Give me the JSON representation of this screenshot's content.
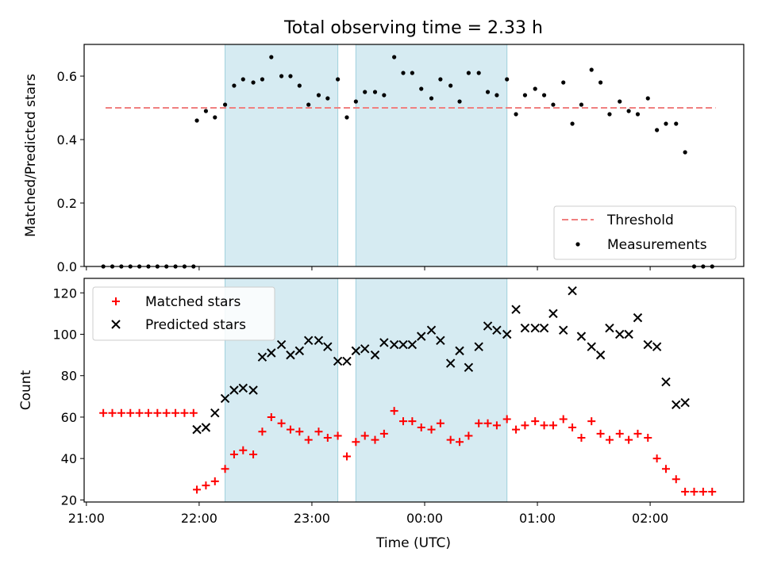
{
  "figure": {
    "title": "Total observing time = 2.33 h",
    "xlabel": "Time (UTC)"
  },
  "x_ticks": [
    {
      "label": "21:00",
      "value": 21.0
    },
    {
      "label": "22:00",
      "value": 22.0
    },
    {
      "label": "23:00",
      "value": 23.0
    },
    {
      "label": "00:00",
      "value": 24.0
    },
    {
      "label": "01:00",
      "value": 25.0
    },
    {
      "label": "02:00",
      "value": 26.0
    }
  ],
  "colors": {
    "threshold": "#f08080",
    "measurements": "#000000",
    "matched": "#ff0000",
    "predicted": "#000000",
    "shade_fill": "#add8e6",
    "shade_edge": "#9fd0dc"
  },
  "chart_data": [
    {
      "type": "scatter",
      "ylabel": "Matched/Predicted stars",
      "xlim": [
        20.98,
        26.83
      ],
      "ylim": [
        0,
        0.7
      ],
      "yticks": [
        {
          "label": "0.0",
          "value": 0.0
        },
        {
          "label": "0.2",
          "value": 0.2
        },
        {
          "label": "0.4",
          "value": 0.4
        },
        {
          "label": "0.6",
          "value": 0.6
        }
      ],
      "shaded_intervals": [
        [
          22.23,
          23.23
        ],
        [
          23.39,
          24.73
        ]
      ],
      "threshold": {
        "name": "Threshold",
        "y": 0.5,
        "x_range": [
          21.17,
          26.58
        ]
      },
      "legend": {
        "position": "lower-right",
        "entries": [
          "Threshold",
          "Measurements"
        ]
      },
      "series": [
        {
          "name": "Measurements",
          "x": [
            21.15,
            21.23,
            21.31,
            21.39,
            21.47,
            21.55,
            21.63,
            21.71,
            21.79,
            21.87,
            21.95,
            21.98,
            22.06,
            22.14,
            22.23,
            22.31,
            22.39,
            22.48,
            22.56,
            22.64,
            22.73,
            22.81,
            22.89,
            22.97,
            23.06,
            23.14,
            23.23,
            23.31,
            23.39,
            23.47,
            23.56,
            23.64,
            23.73,
            23.81,
            23.89,
            23.97,
            24.06,
            24.14,
            24.23,
            24.31,
            24.39,
            24.48,
            24.56,
            24.64,
            24.73,
            24.81,
            24.89,
            24.98,
            25.06,
            25.14,
            25.23,
            25.31,
            25.39,
            25.48,
            25.56,
            25.64,
            25.73,
            25.81,
            25.89,
            25.98,
            26.06,
            26.14,
            26.23,
            26.31,
            26.39,
            26.47,
            26.55
          ],
          "y": [
            0,
            0,
            0,
            0,
            0,
            0,
            0,
            0,
            0,
            0,
            0,
            0.46,
            0.49,
            0.47,
            0.51,
            0.57,
            0.59,
            0.58,
            0.59,
            0.66,
            0.6,
            0.6,
            0.57,
            0.51,
            0.54,
            0.53,
            0.59,
            0.47,
            0.52,
            0.55,
            0.55,
            0.54,
            0.66,
            0.61,
            0.61,
            0.56,
            0.53,
            0.59,
            0.57,
            0.52,
            0.61,
            0.61,
            0.55,
            0.54,
            0.59,
            0.48,
            0.54,
            0.56,
            0.54,
            0.51,
            0.58,
            0.45,
            0.51,
            0.62,
            0.58,
            0.48,
            0.52,
            0.49,
            0.48,
            0.53,
            0.43,
            0.45,
            0.45,
            0.36,
            0,
            0,
            0
          ]
        }
      ]
    },
    {
      "type": "scatter",
      "ylabel": "Count",
      "xlim": [
        20.98,
        26.83
      ],
      "ylim": [
        19,
        127
      ],
      "yticks": [
        {
          "label": "20",
          "value": 20
        },
        {
          "label": "40",
          "value": 40
        },
        {
          "label": "60",
          "value": 60
        },
        {
          "label": "80",
          "value": 80
        },
        {
          "label": "100",
          "value": 100
        },
        {
          "label": "120",
          "value": 120
        }
      ],
      "shaded_intervals": [
        [
          22.23,
          23.23
        ],
        [
          23.39,
          24.73
        ]
      ],
      "legend": {
        "position": "upper-left",
        "entries": [
          "Matched stars",
          "Predicted stars"
        ]
      },
      "series": [
        {
          "name": "Matched stars",
          "x": [
            21.15,
            21.23,
            21.31,
            21.39,
            21.47,
            21.55,
            21.63,
            21.71,
            21.79,
            21.87,
            21.95,
            21.98,
            22.06,
            22.14,
            22.23,
            22.31,
            22.39,
            22.48,
            22.56,
            22.64,
            22.73,
            22.81,
            22.89,
            22.97,
            23.06,
            23.14,
            23.23,
            23.31,
            23.39,
            23.47,
            23.56,
            23.64,
            23.73,
            23.81,
            23.89,
            23.97,
            24.06,
            24.14,
            24.23,
            24.31,
            24.39,
            24.48,
            24.56,
            24.64,
            24.73,
            24.81,
            24.89,
            24.98,
            25.06,
            25.14,
            25.23,
            25.31,
            25.39,
            25.48,
            25.56,
            25.64,
            25.73,
            25.81,
            25.89,
            25.98,
            26.06,
            26.14,
            26.23,
            26.31,
            26.39,
            26.47,
            26.55
          ],
          "y": [
            62,
            62,
            62,
            62,
            62,
            62,
            62,
            62,
            62,
            62,
            62,
            25,
            27,
            29,
            35,
            42,
            44,
            42,
            53,
            60,
            57,
            54,
            53,
            49,
            53,
            50,
            51,
            41,
            48,
            51,
            49,
            52,
            63,
            58,
            58,
            55,
            54,
            57,
            49,
            48,
            51,
            57,
            57,
            56,
            59,
            54,
            56,
            58,
            56,
            56,
            59,
            55,
            50,
            58,
            52,
            49,
            52,
            49,
            52,
            50,
            40,
            35,
            30,
            24,
            24,
            24,
            24
          ]
        },
        {
          "name": "Predicted stars",
          "x": [
            21.98,
            22.06,
            22.14,
            22.23,
            22.31,
            22.39,
            22.48,
            22.56,
            22.64,
            22.73,
            22.81,
            22.89,
            22.97,
            23.06,
            23.14,
            23.23,
            23.31,
            23.39,
            23.47,
            23.56,
            23.64,
            23.73,
            23.81,
            23.89,
            23.97,
            24.06,
            24.14,
            24.23,
            24.31,
            24.39,
            24.48,
            24.56,
            24.64,
            24.73,
            24.81,
            24.89,
            24.98,
            25.06,
            25.14,
            25.23,
            25.31,
            25.39,
            25.48,
            25.56,
            25.64,
            25.73,
            25.81,
            25.89,
            25.98,
            26.06,
            26.14,
            26.23,
            26.31
          ],
          "y": [
            54,
            55,
            62,
            69,
            73,
            74,
            73,
            89,
            91,
            95,
            90,
            92,
            97,
            97,
            94,
            87,
            87,
            92,
            93,
            90,
            96,
            95,
            95,
            95,
            99,
            102,
            97,
            86,
            92,
            84,
            94,
            104,
            102,
            100,
            112,
            103,
            103,
            103,
            110,
            102,
            121,
            99,
            94,
            90,
            103,
            100,
            100,
            108,
            95,
            94,
            77,
            66,
            67
          ]
        }
      ]
    }
  ]
}
